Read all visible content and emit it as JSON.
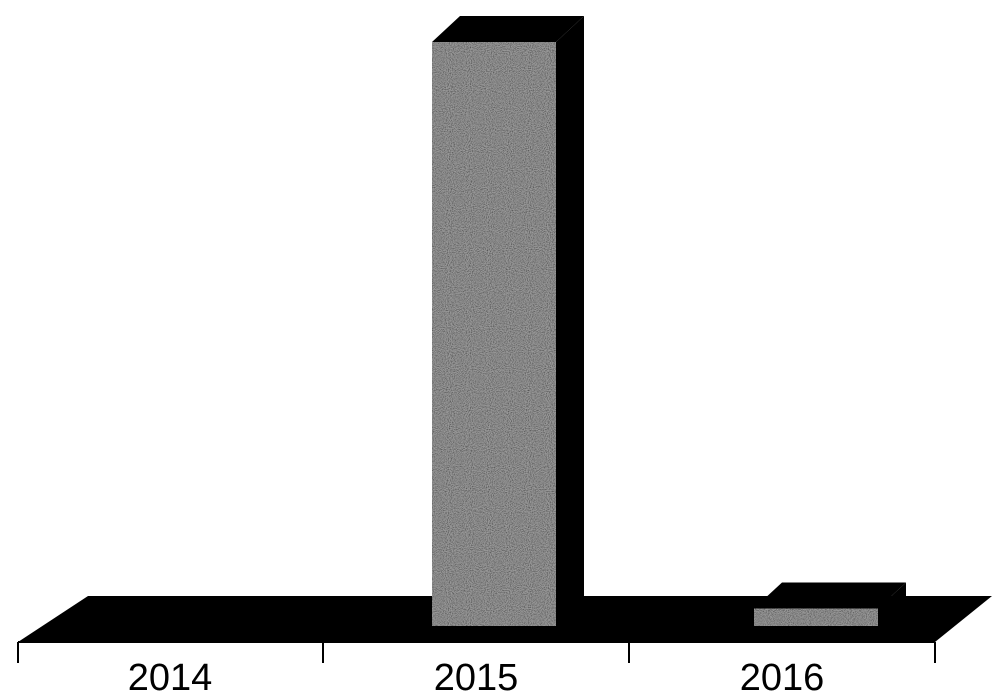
{
  "chart_data": {
    "type": "bar",
    "style": "3d",
    "title": "",
    "xlabel": "",
    "ylabel": "",
    "categories": [
      "2014",
      "2015",
      "2016"
    ],
    "values": [
      0,
      100,
      3
    ],
    "ylim": [
      0,
      100
    ],
    "y_axis_visible": false,
    "grid": false,
    "legend": "none",
    "colors": {
      "bar_face": "#9a9a9a",
      "bar_side": "#000000",
      "floor": "#000000",
      "background": "#ffffff",
      "text": "#000000"
    }
  }
}
